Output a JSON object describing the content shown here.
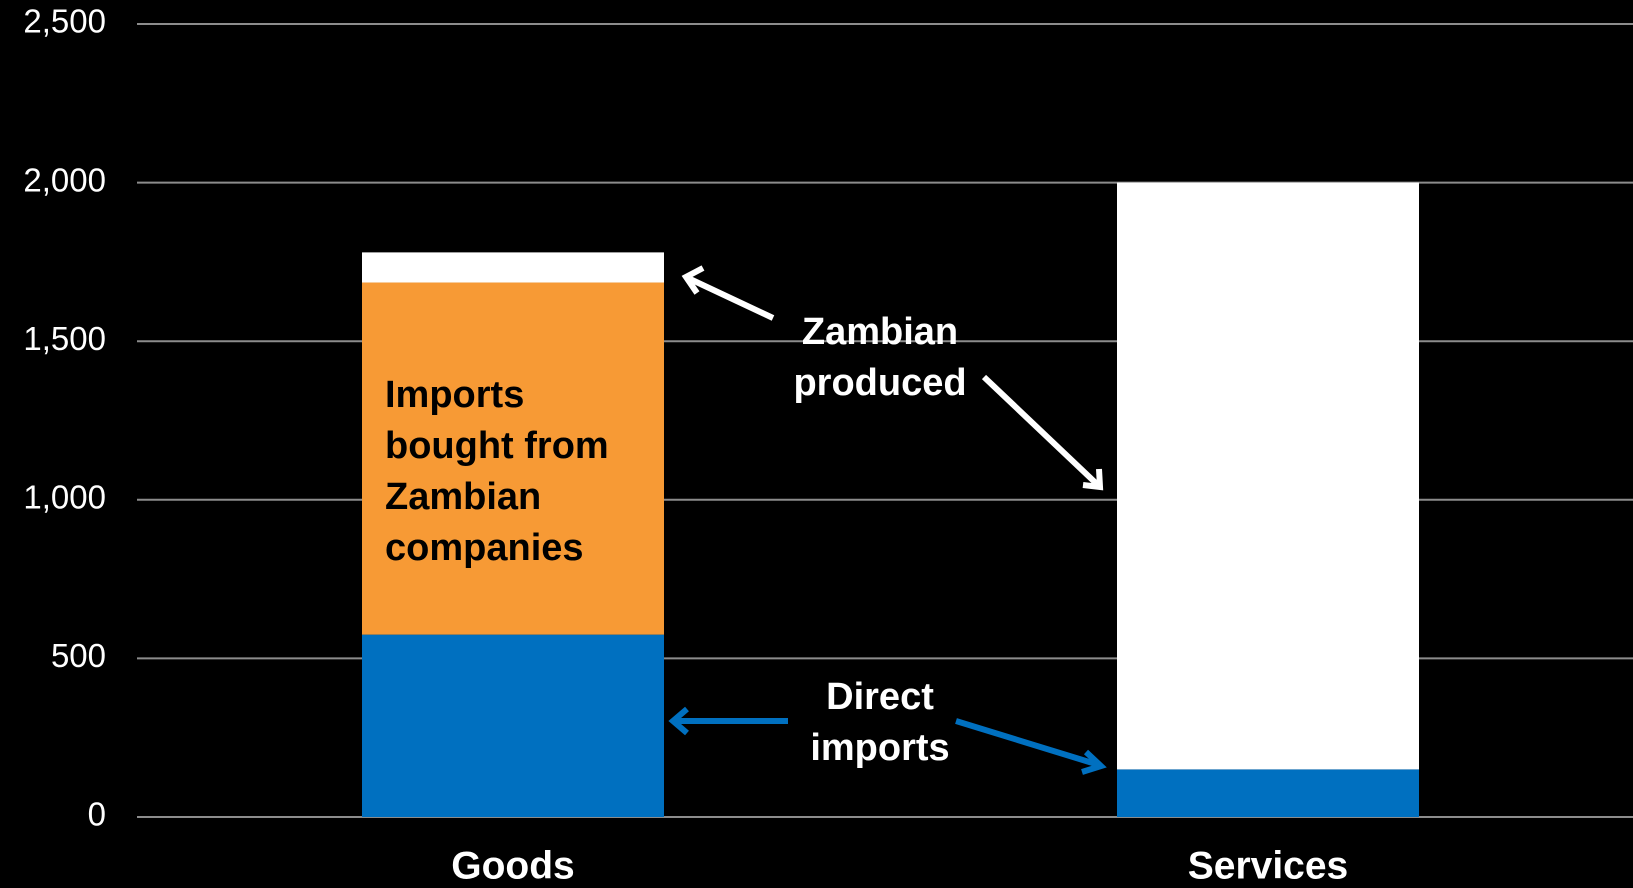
{
  "chart_data": {
    "type": "stacked_bar",
    "categories": [
      "Goods",
      "Services"
    ],
    "series": [
      {
        "name": "Direct imports",
        "color": "#0070c0",
        "values": [
          575,
          150
        ]
      },
      {
        "name": "Imports bought from Zambian companies",
        "color": "#f79a35",
        "values": [
          1110,
          0
        ]
      },
      {
        "name": "Zambian produced",
        "color": "#ffffff",
        "values": [
          95,
          1850
        ]
      }
    ],
    "ylim": [
      0,
      2500
    ],
    "yticks": [
      0,
      500,
      {
        "value": 1000,
        "label": "1,000"
      },
      {
        "value": 1500,
        "label": "1,500"
      },
      {
        "value": 2000,
        "label": "2,000"
      },
      {
        "value": 2500,
        "label": "2,500"
      }
    ],
    "grid": true
  }
}
